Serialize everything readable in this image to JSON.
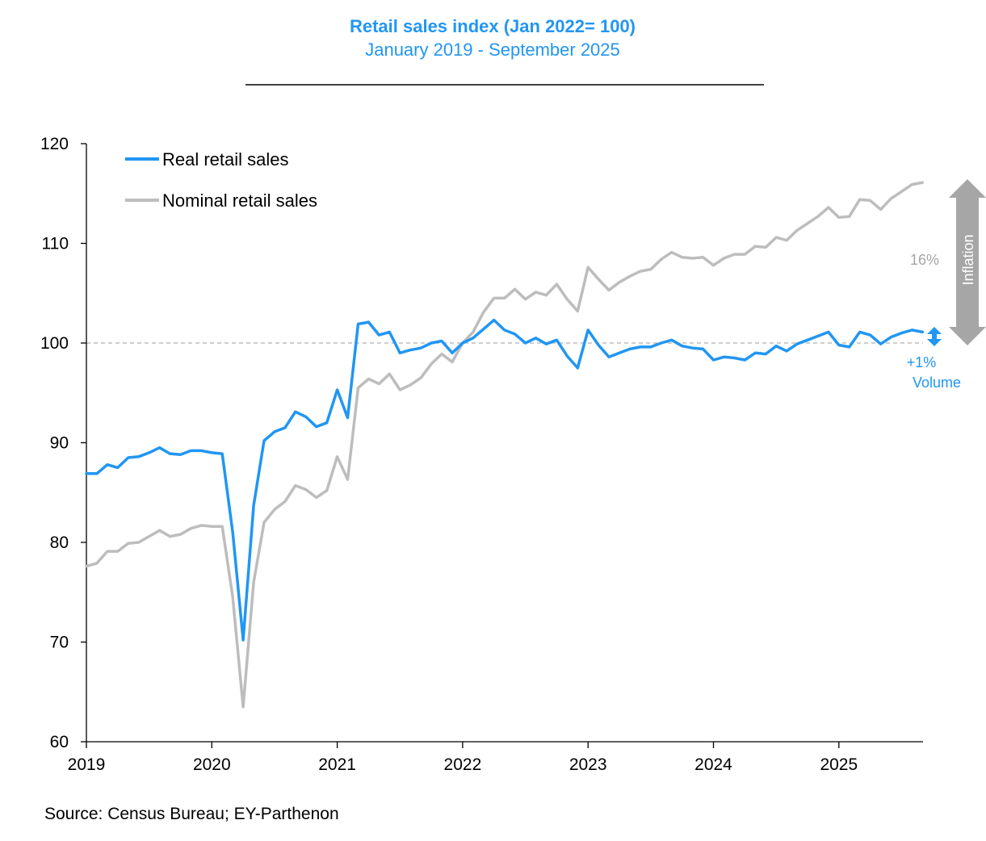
{
  "colors": {
    "real": "#2196F3",
    "nominal": "#BDBDBD",
    "title": "#2196F3",
    "arrow": "#A6A6A6",
    "ref": "#B0B0B0"
  },
  "chart_data": {
    "type": "line",
    "title": "Retail sales index (Jan 2022= 100)",
    "subtitle": "January 2019 - September 2025",
    "xlabel": "",
    "ylabel": "",
    "ylim": [
      60,
      120
    ],
    "yticks": [
      "60",
      "70",
      "80",
      "90",
      "100",
      "110",
      "120"
    ],
    "xticks": [
      "2019",
      "2020",
      "2021",
      "2022",
      "2023",
      "2024",
      "2025"
    ],
    "x_start": "2019-01",
    "x_end": "2025-09",
    "reference_line": 100,
    "legend": {
      "position": "top-left",
      "entries": [
        "Real retail sales",
        "Nominal retail sales"
      ]
    },
    "series": [
      {
        "name": "Real retail sales",
        "color_key": "real",
        "values": [
          86.9,
          86.9,
          87.8,
          87.5,
          88.5,
          88.6,
          89.0,
          89.5,
          88.9,
          88.8,
          89.2,
          89.2,
          89.0,
          88.9,
          81.0,
          70.2,
          83.7,
          90.2,
          91.1,
          91.5,
          93.1,
          92.6,
          91.6,
          92.0,
          95.3,
          92.5,
          101.9,
          102.1,
          100.8,
          101.1,
          99.0,
          99.3,
          99.5,
          100.0,
          100.2,
          99.0,
          100.0,
          100.5,
          101.4,
          102.3,
          101.3,
          100.9,
          100.0,
          100.5,
          99.9,
          100.3,
          98.7,
          97.5,
          101.3,
          99.8,
          98.6,
          99.0,
          99.4,
          99.6,
          99.6,
          100.0,
          100.3,
          99.7,
          99.5,
          99.4,
          98.3,
          98.6,
          98.5,
          98.3,
          99.0,
          98.9,
          99.7,
          99.2,
          99.9,
          100.3,
          100.7,
          101.1,
          99.8,
          99.6,
          101.1,
          100.8,
          99.9,
          100.6,
          101.0,
          101.3,
          101.1
        ]
      },
      {
        "name": "Nominal retail sales",
        "color_key": "nominal",
        "values": [
          77.6,
          77.9,
          79.1,
          79.1,
          79.9,
          80.0,
          80.6,
          81.2,
          80.6,
          80.8,
          81.4,
          81.7,
          81.6,
          81.6,
          74.5,
          63.5,
          76.0,
          82.0,
          83.3,
          84.1,
          85.7,
          85.3,
          84.5,
          85.2,
          88.6,
          86.3,
          95.5,
          96.4,
          95.9,
          96.9,
          95.3,
          95.8,
          96.5,
          97.9,
          98.9,
          98.1,
          100.0,
          101.1,
          103.1,
          104.5,
          104.5,
          105.4,
          104.4,
          105.1,
          104.8,
          105.9,
          104.4,
          103.2,
          107.6,
          106.4,
          105.3,
          106.1,
          106.7,
          107.2,
          107.4,
          108.4,
          109.1,
          108.6,
          108.5,
          108.6,
          107.8,
          108.5,
          108.9,
          108.9,
          109.7,
          109.6,
          110.6,
          110.3,
          111.3,
          112.0,
          112.7,
          113.6,
          112.6,
          112.7,
          114.4,
          114.3,
          113.4,
          114.5,
          115.2,
          115.9,
          116.1
        ]
      }
    ],
    "annotations": {
      "inflation_label": "Inflation",
      "inflation_pct": "16%",
      "volume_pct": "+1%",
      "volume_label": "Volume"
    },
    "source": "Source: Census Bureau; EY-Parthenon"
  }
}
